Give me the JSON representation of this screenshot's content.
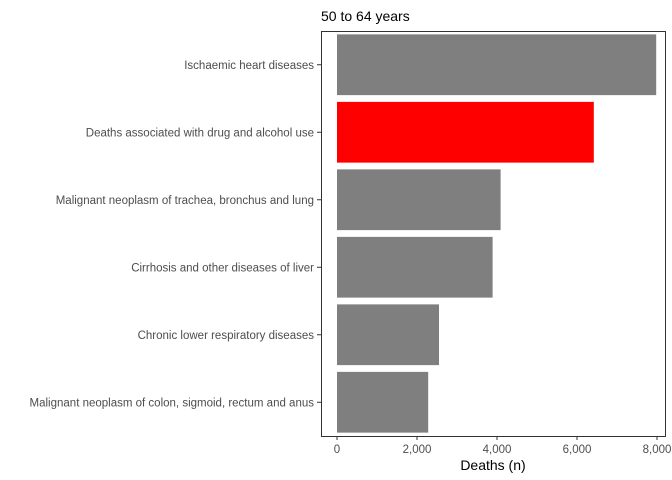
{
  "chart_data": {
    "type": "bar",
    "orientation": "horizontal",
    "title": "50 to 64 years",
    "xlabel": "Deaths (n)",
    "ylabel": "",
    "xlim": [
      -400,
      8200
    ],
    "x_ticks": [
      0,
      2000,
      4000,
      6000,
      8000
    ],
    "x_tick_labels": [
      "0",
      "2,000",
      "4,000",
      "6,000",
      "8,000"
    ],
    "grid": false,
    "legend": "none",
    "categories": [
      "Ischaemic heart diseases",
      "Deaths associated with drug and alcohol use",
      "Malignant neoplasm of trachea, bronchus and lung",
      "Cirrhosis and other diseases of liver",
      "Chronic lower respiratory diseases",
      "Malignant neoplasm of colon, sigmoid, rectum and anus"
    ],
    "values": [
      7980,
      6420,
      4090,
      3890,
      2550,
      2280
    ],
    "colors": [
      "#7f7f7f",
      "#ff0000",
      "#7f7f7f",
      "#7f7f7f",
      "#7f7f7f",
      "#7f7f7f"
    ]
  }
}
